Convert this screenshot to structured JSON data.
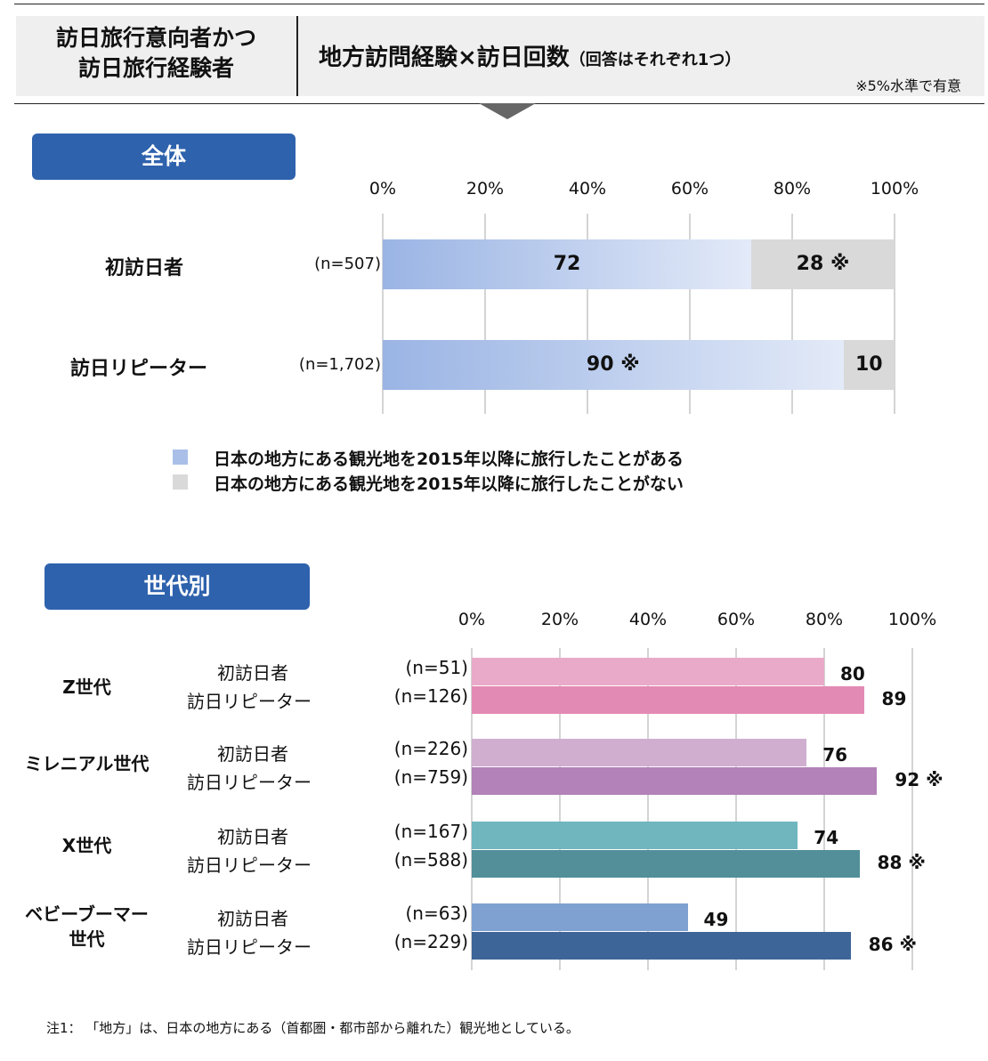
{
  "header": {
    "left_line1": "訪日旅行意向者かつ",
    "left_line2": "訪日旅行経験者",
    "title": "地方訪問経験×訪日回数",
    "title_sub": "（回答はそれぞれ1つ）",
    "note": "※5%水準で有意"
  },
  "sections": {
    "overall": "全体",
    "generation": "世代別"
  },
  "ticks": [
    "0%",
    "20%",
    "40%",
    "60%",
    "80%",
    "100%"
  ],
  "legend": {
    "visited": "日本の地方にある観光地を2015年以降に旅行したことがある",
    "not_visited": "日本の地方にある観光地を2015年以降に旅行したことがない"
  },
  "colors": {
    "badge": "#2e62ad",
    "visited_gradient_start": "#9ab4e4",
    "visited_gradient_end": "#e3eaf8",
    "not_visited": "#d9d9d9",
    "z_first": "#e9a9c9",
    "z_repeat": "#e38ab4",
    "mil_first": "#cfaed0",
    "mil_repeat": "#b282b8",
    "x_first": "#6fb6bf",
    "x_repeat": "#528f99",
    "boomer_first": "#7ea1d1",
    "boomer_repeat": "#3d6598"
  },
  "chart_data": [
    {
      "type": "bar",
      "orientation": "horizontal",
      "stacked": true,
      "section": "全体",
      "xlim": [
        0,
        100
      ],
      "categories": [
        "初訪日者",
        "訪日リピーター"
      ],
      "n_labels": [
        "(n=507)",
        "(n=1,702)"
      ],
      "series": [
        {
          "name": "日本の地方にある観光地を2015年以降に旅行したことがある",
          "values": [
            72,
            90
          ],
          "labels": [
            "72",
            "90 ※"
          ]
        },
        {
          "name": "日本の地方にある観光地を2015年以降に旅行したことがない",
          "values": [
            28,
            10
          ],
          "labels": [
            "28 ※",
            "10"
          ]
        }
      ]
    },
    {
      "type": "bar",
      "orientation": "horizontal",
      "section": "世代別",
      "xlim": [
        0,
        100
      ],
      "groups": [
        {
          "name": "Z世代",
          "rows": [
            {
              "label": "初訪日者",
              "n": "(n=51)",
              "value": 80,
              "value_label": "80",
              "color": "#e9a9c9"
            },
            {
              "label": "訪日リピーター",
              "n": "(n=126)",
              "value": 89,
              "value_label": "89",
              "color": "#e38ab4"
            }
          ]
        },
        {
          "name": "ミレニアル世代",
          "rows": [
            {
              "label": "初訪日者",
              "n": "(n=226)",
              "value": 76,
              "value_label": "76",
              "color": "#cfaed0"
            },
            {
              "label": "訪日リピーター",
              "n": "(n=759)",
              "value": 92,
              "value_label": "92 ※",
              "color": "#b282b8"
            }
          ]
        },
        {
          "name": "X世代",
          "rows": [
            {
              "label": "初訪日者",
              "n": "(n=167)",
              "value": 74,
              "value_label": "74",
              "color": "#6fb6bf"
            },
            {
              "label": "訪日リピーター",
              "n": "(n=588)",
              "value": 88,
              "value_label": "88 ※",
              "color": "#528f99"
            }
          ]
        },
        {
          "name_line1": "ベビーブーマー",
          "name_line2": "世代",
          "rows": [
            {
              "label": "初訪日者",
              "n": "(n=63)",
              "value": 49,
              "value_label": "49",
              "color": "#7ea1d1"
            },
            {
              "label": "訪日リピーター",
              "n": "(n=229)",
              "value": 86,
              "value_label": "86 ※",
              "color": "#3d6598"
            }
          ]
        }
      ]
    }
  ],
  "footnote": "注1： 「地方」は、日本の地方にある（首都圏・都市部から離れた）観光地としている。"
}
